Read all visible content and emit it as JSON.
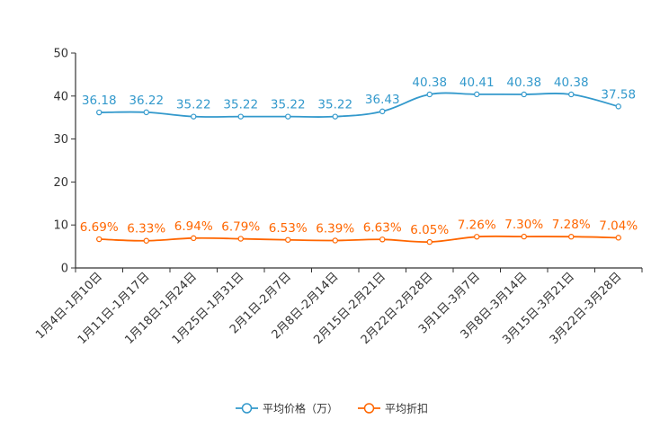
{
  "chart_data": {
    "type": "line",
    "title": "",
    "xlabel": "",
    "ylabel": "",
    "ylim": [
      0,
      50
    ],
    "yticks": [
      0,
      10,
      20,
      30,
      40,
      50
    ],
    "grid": false,
    "legend_position": "bottom-center",
    "categories": [
      "1月4日-1月10日",
      "1月11日-1月17日",
      "1月18日-1月24日",
      "1月25日-1月31日",
      "2月1日-2月7日",
      "2月8日-2月14日",
      "2月15日-2月21日",
      "2月22日-2月28日",
      "3月1日-3月7日",
      "3月8日-3月14日",
      "3月15日-3月21日",
      "3月22日-3月28日"
    ],
    "series": [
      {
        "name": "平均价格（万）",
        "color": "#3399cc",
        "values": [
          36.18,
          36.22,
          35.22,
          35.22,
          35.22,
          35.22,
          36.43,
          40.38,
          40.41,
          40.38,
          40.38,
          37.58
        ],
        "labels": [
          "36.18",
          "36.22",
          "35.22",
          "35.22",
          "35.22",
          "35.22",
          "36.43",
          "40.38",
          "40.41",
          "40.38",
          "40.38",
          "37.58"
        ]
      },
      {
        "name": "平均折扣",
        "color": "#ff6600",
        "values": [
          6.69,
          6.33,
          6.94,
          6.79,
          6.53,
          6.39,
          6.63,
          6.05,
          7.26,
          7.3,
          7.28,
          7.04
        ],
        "labels": [
          "6.69%",
          "6.33%",
          "6.94%",
          "6.79%",
          "6.53%",
          "6.39%",
          "6.63%",
          "6.05%",
          "7.26%",
          "7.30%",
          "7.28%",
          "7.04%"
        ]
      }
    ]
  }
}
